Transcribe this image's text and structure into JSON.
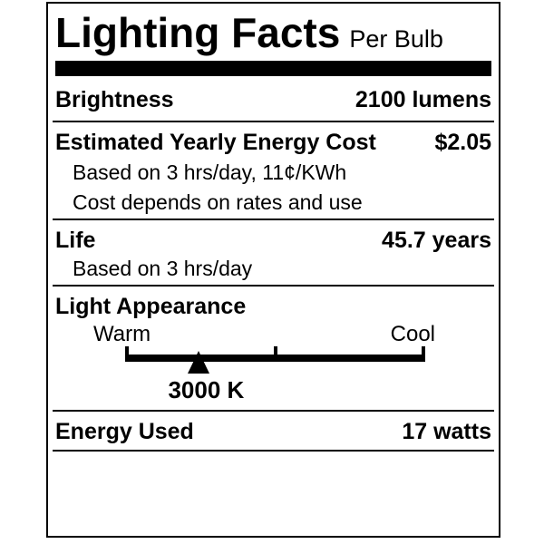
{
  "label": {
    "title": "Lighting Facts",
    "subtitle": "Per Bulb",
    "brightness": {
      "label": "Brightness",
      "value": "2100 lumens"
    },
    "energy_cost": {
      "label": "Estimated Yearly Energy Cost",
      "value": "$2.05",
      "note1": "Based on 3 hrs/day, 11¢/KWh",
      "note2": "Cost depends on rates and use"
    },
    "life": {
      "label": "Life",
      "value": "45.7 years",
      "note": "Based on 3 hrs/day"
    },
    "light_appearance": {
      "label": "Light Appearance",
      "warm": "Warm",
      "cool": "Cool",
      "kelvin": "3000 K",
      "marker_pct": 24.5,
      "kelvin_label_pct": 27
    },
    "energy_used": {
      "label": "Energy Used",
      "value": "17 watts"
    },
    "colors": {
      "ink": "#000000",
      "background": "#ffffff"
    }
  }
}
